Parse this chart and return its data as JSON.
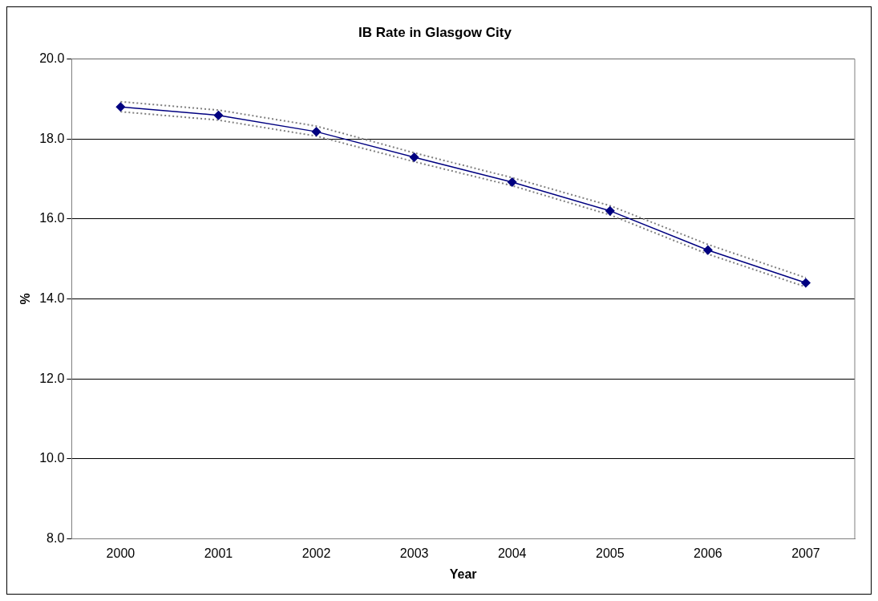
{
  "chart_data": {
    "type": "line",
    "title": "IB Rate in Glasgow City",
    "xlabel": "Year",
    "ylabel": "%",
    "categories": [
      "2000",
      "2001",
      "2002",
      "2003",
      "2004",
      "2005",
      "2006",
      "2007"
    ],
    "series": [
      {
        "color": "#000080",
        "marker": "diamond",
        "line_style": "solid",
        "values": [
          18.8,
          18.59,
          18.18,
          17.54,
          16.92,
          16.2,
          15.22,
          14.4
        ]
      },
      {
        "color": "#808080",
        "marker": "none",
        "line_style": "dotted",
        "values": [
          18.93,
          18.72,
          18.32,
          17.65,
          17.03,
          16.33,
          15.36,
          14.53
        ]
      },
      {
        "color": "#808080",
        "marker": "none",
        "line_style": "dotted",
        "values": [
          18.68,
          18.47,
          18.07,
          17.43,
          16.83,
          16.1,
          15.12,
          14.3
        ]
      }
    ],
    "ylim": [
      8,
      20
    ],
    "yticks": [
      {
        "value": 8,
        "label": "8.0"
      },
      {
        "value": 10,
        "label": "10.0"
      },
      {
        "value": 12,
        "label": "12.0"
      },
      {
        "value": 14,
        "label": "14.0"
      },
      {
        "value": 16,
        "label": "16.0"
      },
      {
        "value": 18,
        "label": "18.0"
      },
      {
        "value": 20,
        "label": "20.0"
      }
    ],
    "grid": "y",
    "legend": false
  }
}
